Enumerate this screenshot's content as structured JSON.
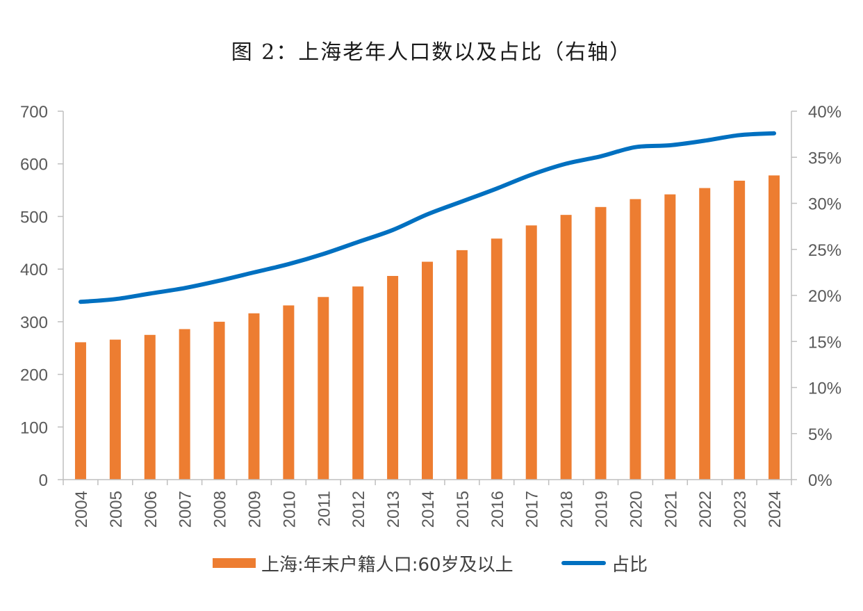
{
  "title": "图 2：上海老年人口数以及占比（右轴）",
  "colors": {
    "bar": "#ED7D31",
    "line": "#0070C0",
    "axis": "#BFBFBF",
    "text": "#595959"
  },
  "chart_data": {
    "type": "bar",
    "title": "图 2：上海老年人口数以及占比（右轴）",
    "categories": [
      "2004",
      "2005",
      "2006",
      "2007",
      "2008",
      "2009",
      "2010",
      "2011",
      "2012",
      "2013",
      "2014",
      "2015",
      "2016",
      "2017",
      "2018",
      "2019",
      "2020",
      "2021",
      "2022",
      "2023",
      "2024"
    ],
    "series": [
      {
        "name": "上海:年末户籍人口:60岁及以上",
        "type": "bar",
        "axis": "left",
        "values": [
          261,
          266,
          275,
          286,
          300,
          316,
          331,
          347,
          367,
          387,
          414,
          436,
          458,
          483,
          503,
          518,
          533,
          542,
          554,
          568,
          578
        ]
      },
      {
        "name": "占比",
        "type": "line",
        "axis": "right",
        "values": [
          19.3,
          19.6,
          20.2,
          20.8,
          21.6,
          22.5,
          23.4,
          24.5,
          25.8,
          27.1,
          28.8,
          30.2,
          31.6,
          33.1,
          34.3,
          35.1,
          36.1,
          36.3,
          36.8,
          37.4,
          37.6
        ]
      }
    ],
    "y_left": {
      "ylim": [
        0,
        700
      ],
      "ticks": [
        "0",
        "100",
        "200",
        "300",
        "400",
        "500",
        "600",
        "700"
      ]
    },
    "y_right": {
      "ylim": [
        0,
        40
      ],
      "ticks": [
        "0%",
        "5%",
        "10%",
        "15%",
        "20%",
        "25%",
        "30%",
        "35%",
        "40%"
      ]
    },
    "grid": false,
    "legend_position": "bottom"
  }
}
